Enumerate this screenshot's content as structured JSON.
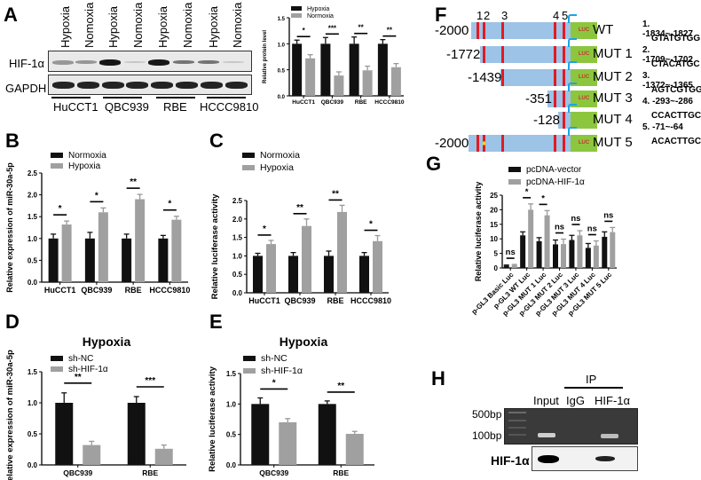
{
  "panels": {
    "A": {
      "letter": "A",
      "blot": {
        "lane_labels": [
          "Hypoxia",
          "Nomoxia",
          "Hypoxia",
          "Nomoxia",
          "Hypoxia",
          "Nomoxia",
          "Hypoxia",
          "Nomoxia"
        ],
        "row_labels": [
          "HIF-1α",
          "GAPDH"
        ],
        "cell_lines": [
          "HuCCT1",
          "QBC939",
          "RBE",
          "HCCC9810"
        ]
      }
    },
    "B": {
      "letter": "B"
    },
    "C": {
      "letter": "C"
    },
    "D": {
      "letter": "D"
    },
    "E": {
      "letter": "E"
    },
    "F": {
      "letter": "F",
      "site_numbers": [
        "1",
        "2",
        "3",
        "4",
        "5"
      ],
      "constructs": [
        {
          "name": "WT",
          "start": "-2000",
          "luc": "LUC"
        },
        {
          "name": "MUT 1",
          "start": "-1772",
          "luc": "LUC"
        },
        {
          "name": "MUT 2",
          "start": "-1439",
          "luc": "LUC"
        },
        {
          "name": "MUT 3",
          "start": "-351",
          "luc": "LUC"
        },
        {
          "name": "MUT 4",
          "start": "-128",
          "luc": ""
        },
        {
          "name": "MUT  5",
          "start": "-2000",
          "luc": "LUC"
        }
      ],
      "sites": [
        {
          "label": "1. -1834~-1827",
          "seq": "GTATGTGG"
        },
        {
          "label": "2. -1709~-1702",
          "seq": "CTACATGC"
        },
        {
          "label": "3. -1372~-1365",
          "seq": "AGTCGTGG"
        },
        {
          "label": "4. -293~-286",
          "seq": "CCACTTGC"
        },
        {
          "label": "5. -71~-64",
          "seq": "ACACTTGC"
        }
      ]
    },
    "G": {
      "letter": "G"
    },
    "H": {
      "letter": "H",
      "ip_label": "IP",
      "lane_labels": [
        "Input",
        "IgG",
        "HIF-1α"
      ],
      "markers": [
        "500bp",
        "100bp"
      ],
      "row_label": "HIF-1α"
    }
  },
  "colors": {
    "black_series": "#111111",
    "gray_series": "#a0a0a0",
    "construct_blue": "#9dc3e6",
    "site_red": "#e01b24",
    "luc_green": "#8cc63f",
    "tss_blue": "#1aa3e8"
  },
  "chart_data": [
    {
      "id": "A",
      "type": "bar",
      "title": "",
      "xlabel": "",
      "ylabel": "Relative protein level",
      "ylim": [
        0,
        1.5
      ],
      "yticks": [
        "0.0",
        "0.5",
        "1.0",
        "1.5"
      ],
      "categories": [
        "HuCCT1",
        "QBC939",
        "RBE",
        "HCCC9810"
      ],
      "series": [
        {
          "name": "Hypoxia",
          "color": "#111111",
          "values": [
            1.0,
            1.0,
            1.0,
            1.0
          ],
          "errors": [
            0.07,
            0.12,
            0.13,
            0.08
          ]
        },
        {
          "name": "Normoxia",
          "color": "#a0a0a0",
          "values": [
            0.72,
            0.39,
            0.49,
            0.55
          ],
          "errors": [
            0.07,
            0.07,
            0.08,
            0.07
          ]
        }
      ],
      "significance": [
        "*",
        "***",
        "**",
        "**"
      ],
      "legend_position": "top-left"
    },
    {
      "id": "B",
      "type": "bar",
      "title": "",
      "xlabel": "",
      "ylabel": "Relative expression of miR-30a-5p",
      "ylim": [
        0,
        2.5
      ],
      "yticks": [
        "0.0",
        "0.5",
        "1.0",
        "1.5",
        "2.0",
        "2.5"
      ],
      "categories": [
        "HuCCT1",
        "QBC939",
        "RBE",
        "HCCC9810"
      ],
      "series": [
        {
          "name": "Normoxia",
          "color": "#111111",
          "values": [
            1.0,
            1.0,
            1.0,
            1.0
          ],
          "errors": [
            0.1,
            0.14,
            0.1,
            0.07
          ]
        },
        {
          "name": "Hypoxia",
          "color": "#a0a0a0",
          "values": [
            1.32,
            1.6,
            1.9,
            1.43
          ],
          "errors": [
            0.08,
            0.1,
            0.11,
            0.08
          ]
        }
      ],
      "significance": [
        "*",
        "*",
        "**",
        "*"
      ],
      "legend_position": "top-left"
    },
    {
      "id": "C",
      "type": "bar",
      "title": "",
      "xlabel": "",
      "ylabel": "Relative luciferase activity",
      "ylim": [
        0,
        2.5
      ],
      "yticks": [
        "0.0",
        "0.5",
        "1.0",
        "1.5",
        "2.0",
        "2.5"
      ],
      "categories": [
        "HuCCT1",
        "QBC939",
        "RBE",
        "HCCC9810"
      ],
      "series": [
        {
          "name": "Normoxia",
          "color": "#111111",
          "values": [
            1.0,
            1.0,
            1.0,
            1.0
          ],
          "errors": [
            0.07,
            0.09,
            0.13,
            0.09
          ]
        },
        {
          "name": "Hypoxia",
          "color": "#a0a0a0",
          "values": [
            1.32,
            1.81,
            2.19,
            1.4
          ],
          "errors": [
            0.1,
            0.19,
            0.18,
            0.15
          ]
        }
      ],
      "significance": [
        "*",
        "**",
        "**",
        "*"
      ],
      "legend_position": "top-left"
    },
    {
      "id": "D",
      "type": "bar",
      "title": "Hypoxia",
      "xlabel": "",
      "ylabel": "Relative expression of miR-30a-5p",
      "ylim": [
        0,
        1.5
      ],
      "yticks": [
        "0.0",
        "0.5",
        "1.0",
        "1.5"
      ],
      "categories": [
        "QBC939",
        "RBE"
      ],
      "series": [
        {
          "name": "sh-NC",
          "color": "#111111",
          "values": [
            1.0,
            1.0
          ],
          "errors": [
            0.16,
            0.1
          ]
        },
        {
          "name": "sh-HIF-1α",
          "color": "#a0a0a0",
          "values": [
            0.32,
            0.26
          ],
          "errors": [
            0.06,
            0.06
          ]
        }
      ],
      "significance": [
        "**",
        "***"
      ],
      "legend_position": "top-left"
    },
    {
      "id": "E",
      "type": "bar",
      "title": "Hypoxia",
      "xlabel": "",
      "ylabel": "Relative luciferase activity",
      "ylim": [
        0,
        1.5
      ],
      "yticks": [
        "0.0",
        "0.5",
        "1.0",
        "1.5"
      ],
      "categories": [
        "QBC939",
        "RBE"
      ],
      "series": [
        {
          "name": "sh-NC",
          "color": "#111111",
          "values": [
            1.0,
            1.0
          ],
          "errors": [
            0.1,
            0.05
          ]
        },
        {
          "name": "sh-HIF-1α",
          "color": "#a0a0a0",
          "values": [
            0.7,
            0.51
          ],
          "errors": [
            0.06,
            0.04
          ]
        }
      ],
      "significance": [
        "*",
        "**"
      ],
      "legend_position": "top-left"
    },
    {
      "id": "G",
      "type": "bar",
      "title": "",
      "xlabel": "",
      "ylabel": "Relative luciferase activity",
      "ylim": [
        0,
        25
      ],
      "yticks": [
        "0",
        "5",
        "10",
        "15",
        "20",
        "25"
      ],
      "categories": [
        "p-GL3 Basic Luc",
        "p-GL3 WT Luc",
        "p-GL3 MUT 1 Luc",
        "p-GL3 MUT 2 Luc",
        "p-GL3 MUT 3 Luc",
        "p-GL3 MUT 4 Luc",
        "p-GL3 MUT 5 Luc"
      ],
      "series": [
        {
          "name": "pcDNA-vector",
          "color": "#111111",
          "values": [
            0.8,
            11.2,
            9.2,
            8.1,
            9.6,
            6.9,
            10.7
          ],
          "errors": [
            0.2,
            1.2,
            1.2,
            1.5,
            1.6,
            1.5,
            1.7
          ]
        },
        {
          "name": "pcDNA-HIF-1α",
          "color": "#a0a0a0",
          "values": [
            1.0,
            20.0,
            18.1,
            8.2,
            11.2,
            7.7,
            12.3
          ],
          "errors": [
            0.2,
            2.0,
            1.6,
            1.7,
            1.6,
            1.6,
            1.6
          ]
        }
      ],
      "significance": [
        "ns",
        "*",
        "*",
        "ns",
        "ns",
        "ns",
        "ns"
      ],
      "legend_position": "top-left"
    }
  ]
}
